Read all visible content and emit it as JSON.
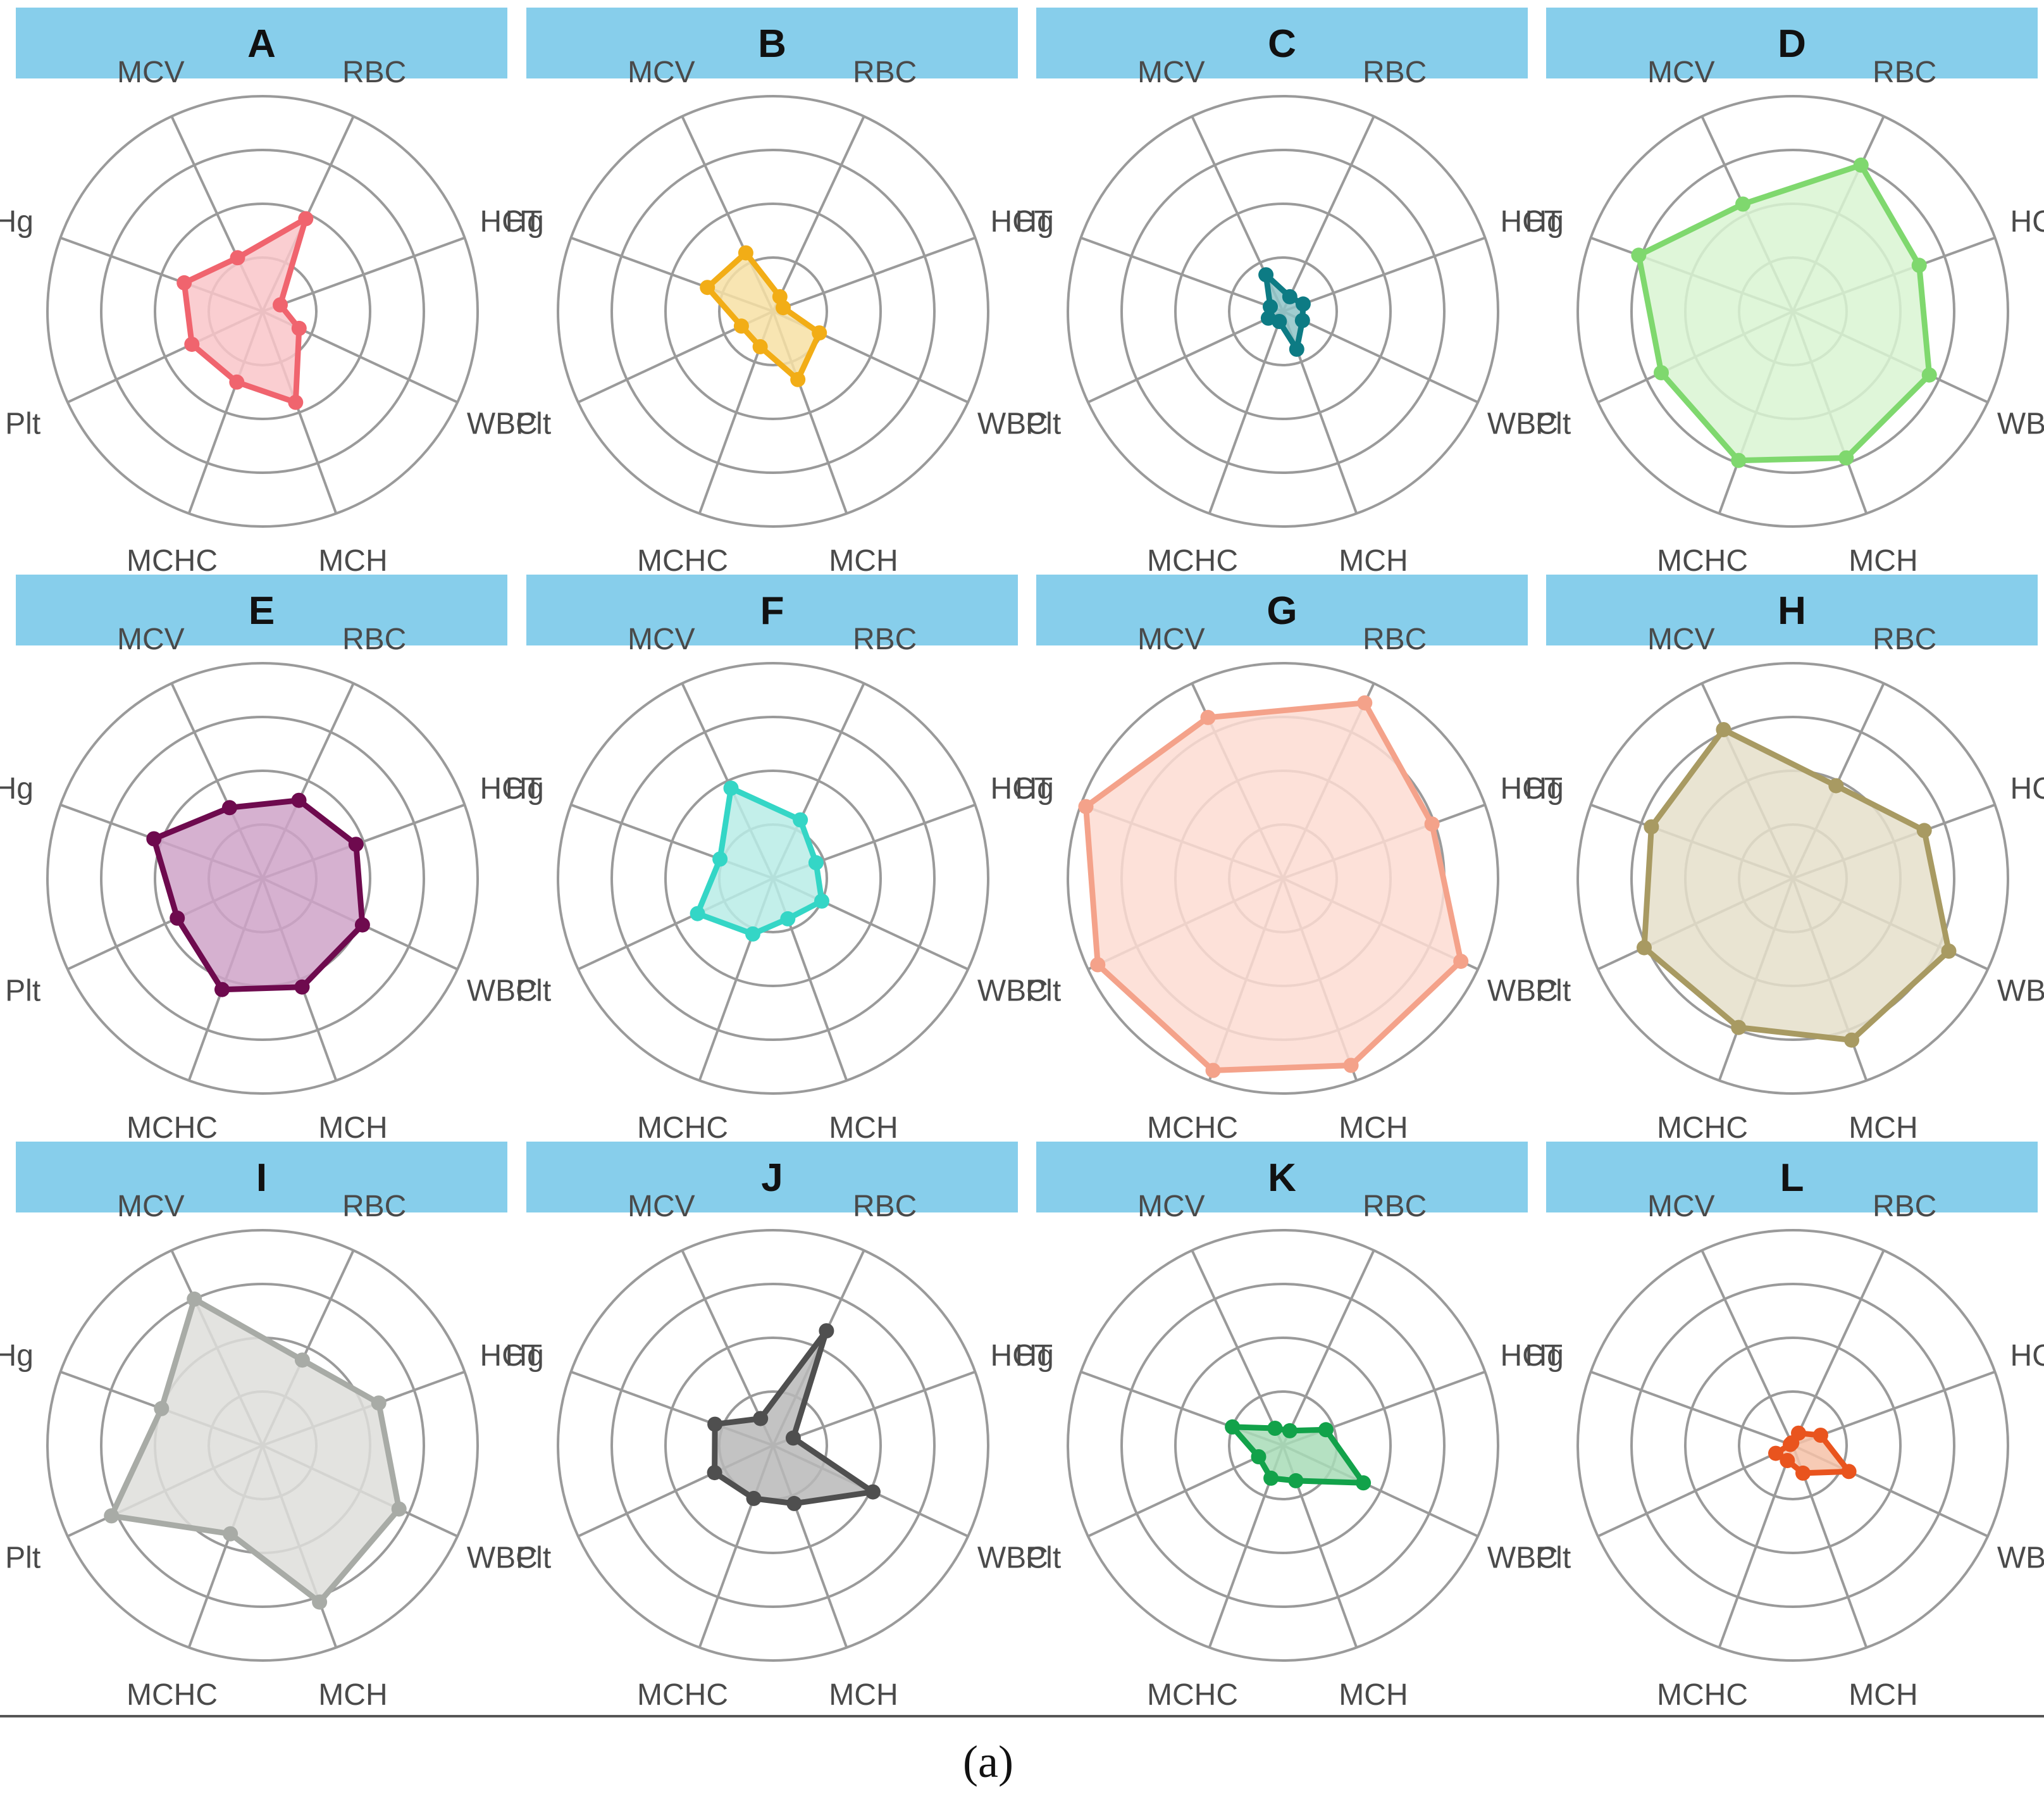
{
  "figure_caption": "(a)",
  "chart_data": {
    "type": "radar",
    "axes": [
      "RBC",
      "HCT",
      "WBC",
      "MCH",
      "MCHC",
      "Plt",
      "Hg",
      "MCV"
    ],
    "rlim": [
      0,
      4
    ],
    "grid_rings": 4,
    "panels": [
      {
        "title": "A",
        "color": "#f0646e",
        "fill": "#f9c6c9",
        "values": [
          1.9,
          0.35,
          0.75,
          1.8,
          1.4,
          1.45,
          1.55,
          1.1
        ]
      },
      {
        "title": "B",
        "color": "#f2ad16",
        "fill": "#f7e0a5",
        "values": [
          0.3,
          0.2,
          0.95,
          1.35,
          0.7,
          0.65,
          1.3,
          1.2
        ]
      },
      {
        "title": "C",
        "color": "#0d7b84",
        "fill": "#8fc4c8",
        "values": [
          0.3,
          0.4,
          0.4,
          0.75,
          0.2,
          0.3,
          0.25,
          0.75
        ]
      },
      {
        "title": "D",
        "color": "#7fd86e",
        "fill": "#d9f4d2",
        "values": [
          3.0,
          2.5,
          2.8,
          2.9,
          2.95,
          2.7,
          3.05,
          2.2
        ]
      },
      {
        "title": "E",
        "color": "#6e0a4e",
        "fill": "#cfa3c8",
        "values": [
          1.6,
          1.85,
          2.05,
          2.15,
          2.2,
          1.75,
          2.15,
          1.45
        ]
      },
      {
        "title": "F",
        "color": "#34d6c6",
        "fill": "#b9ece6",
        "values": [
          1.2,
          0.85,
          1.0,
          0.8,
          1.1,
          1.55,
          1.05,
          1.85
        ]
      },
      {
        "title": "G",
        "color": "#f4a28a",
        "fill": "#fddcd2",
        "values": [
          3.6,
          2.95,
          3.65,
          3.7,
          3.8,
          3.8,
          3.9,
          3.3
        ]
      },
      {
        "title": "H",
        "color": "#a89a62",
        "fill": "#e5dfca",
        "values": [
          1.9,
          2.6,
          3.2,
          3.2,
          2.95,
          3.05,
          2.8,
          3.05
        ]
      },
      {
        "title": "I",
        "color": "#a8aba6",
        "fill": "#dededb",
        "values": [
          1.75,
          2.3,
          2.8,
          3.1,
          1.75,
          3.1,
          2.0,
          3.0
        ]
      },
      {
        "title": "J",
        "color": "#4f4f4f",
        "fill": "#b9b9b9",
        "values": [
          2.35,
          0.4,
          2.05,
          1.15,
          1.05,
          1.2,
          1.15,
          0.55
        ]
      },
      {
        "title": "K",
        "color": "#12a24a",
        "fill": "#a8dcb7",
        "values": [
          0.3,
          0.85,
          1.65,
          0.7,
          0.65,
          0.5,
          1.0,
          0.35
        ]
      },
      {
        "title": "L",
        "color": "#e9541e",
        "fill": "#f6c2a8",
        "values": [
          0.25,
          0.55,
          1.15,
          0.55,
          0.3,
          0.35,
          0.05,
          0.05
        ]
      }
    ]
  }
}
